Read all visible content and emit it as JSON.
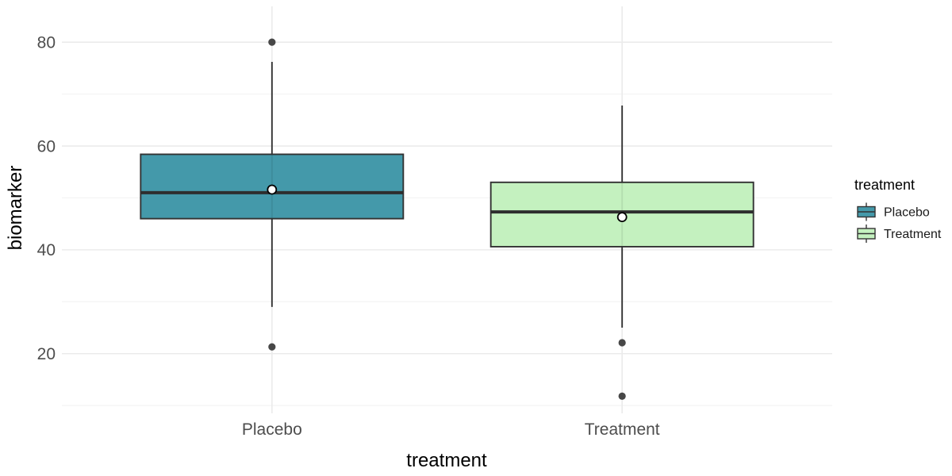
{
  "chart_data": {
    "type": "boxplot",
    "title": "",
    "xlabel": "treatment",
    "ylabel": "biomarker",
    "categories": [
      "Placebo",
      "Treatment"
    ],
    "series": [
      {
        "name": "Placebo",
        "fill": "#4499AA",
        "q1": 46,
        "median": 51,
        "q3": 58.4,
        "whisker_low": 29,
        "whisker_high": 76.2,
        "mean": 51.6,
        "outliers": [
          80,
          21.3
        ]
      },
      {
        "name": "Treatment",
        "fill": "#C4F1BF",
        "q1": 40.6,
        "median": 47.3,
        "q3": 53,
        "whisker_low": 25,
        "whisker_high": 67.8,
        "mean": 46.3,
        "outliers": [
          22.1,
          11.8
        ]
      }
    ],
    "y_ticks": [
      20,
      40,
      60,
      80
    ],
    "y_minor_ticks": [
      10,
      30,
      50,
      70
    ],
    "ylim": [
      8.5,
      86.9
    ],
    "grid": "major+minor, white background (theme_minimal)",
    "legend": {
      "title": "treatment",
      "position": "right",
      "entries": [
        {
          "label": "Placebo",
          "fill": "#4499AA"
        },
        {
          "label": "Treatment",
          "fill": "#C4F1BF"
        }
      ]
    }
  },
  "colors": {
    "background": "#FFFFFF",
    "grid_major": "#EBEBEB",
    "grid_minor": "#F5F5F5",
    "box_border": "#333333",
    "median_line": "#2E2E2E",
    "whisker": "#333333",
    "outlier_point": "#474747",
    "mean_point_fill": "#FFFFFF",
    "mean_point_stroke": "#000000",
    "tick_text": "#4D4D4D",
    "title_text": "#000000"
  }
}
